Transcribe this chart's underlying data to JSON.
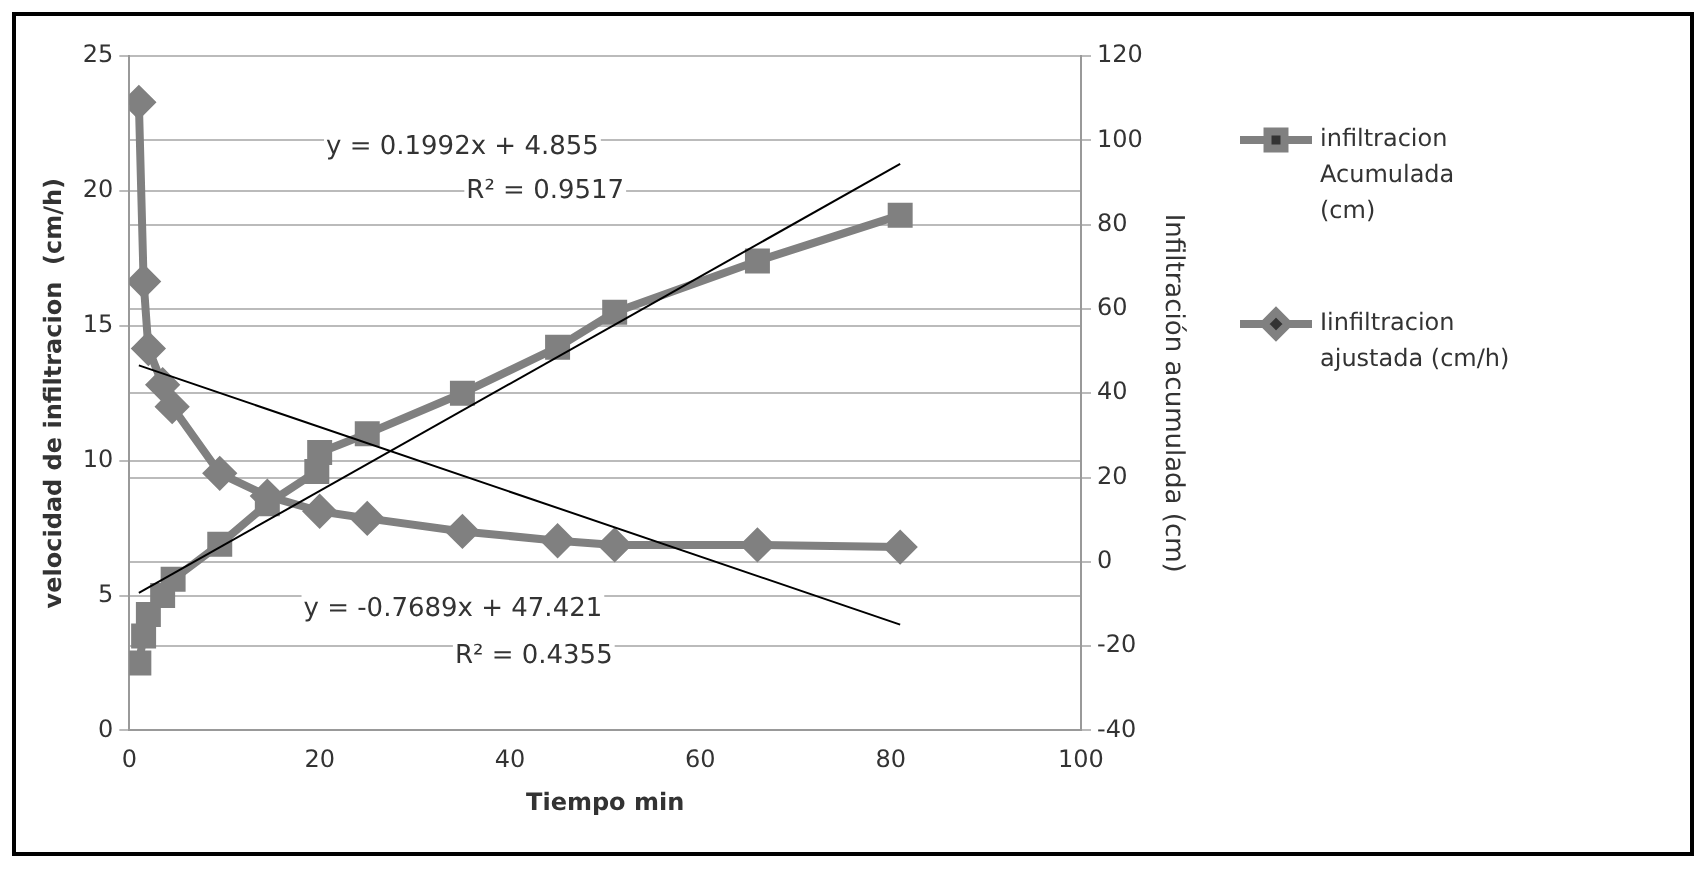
{
  "chart_data": {
    "type": "line",
    "xlabel": "Tiempo min",
    "ylabel": "velocidad de infiltracion  (cm/h)",
    "y2label": "Infiltración acumulada (cm)",
    "xlim": [
      0,
      100
    ],
    "xticks": [
      0,
      20,
      40,
      60,
      80,
      100
    ],
    "ylim": [
      0,
      25
    ],
    "yticks": [
      0,
      5,
      10,
      15,
      20,
      25
    ],
    "y2lim": [
      -40,
      120
    ],
    "y2ticks": [
      -40,
      -20,
      0,
      20,
      40,
      60,
      80,
      100,
      120
    ],
    "grid": "y",
    "legend": "right",
    "series": [
      {
        "name": "infiltracion Acumulada (cm)",
        "color": "#808080",
        "marker": "square",
        "x": [
          1,
          1.5,
          2,
          3.5,
          4.6,
          9.5,
          14.5,
          19.7,
          20,
          25,
          35,
          45,
          51,
          66,
          81
        ],
        "values": [
          2.5,
          3.5,
          4.3,
          5,
          5.6,
          6.9,
          8.4,
          9.6,
          10.3,
          11,
          12.5,
          14.2,
          15.5,
          17.4,
          19.1
        ]
      },
      {
        "name": "Iinfiltracion ajustada (cm/h)",
        "color": "#808080",
        "marker": "diamond",
        "axis": "y2",
        "x": [
          1,
          1.5,
          2,
          3.5,
          4.5,
          9.5,
          14.5,
          20,
          25,
          35,
          45,
          51,
          66,
          81
        ],
        "values": [
          109,
          66.5,
          50.6,
          42,
          36.8,
          21,
          15.6,
          12,
          10.3,
          7.2,
          5,
          4,
          4,
          3.5
        ]
      },
      {
        "type": "line",
        "color": "#000000",
        "marker": "none",
        "x": [
          1,
          81
        ],
        "values": [
          5.1,
          21
        ]
      },
      {
        "type": "line",
        "color": "#000000",
        "marker": "none",
        "axis": "y2",
        "x": [
          1,
          81
        ],
        "values": [
          46.6,
          -14.9
        ]
      }
    ],
    "annotations": [
      "y = 0.1992x + 4.855",
      "R² = 0.9517",
      "y = -0.7689x + 47.421",
      "R² = 0.4355"
    ]
  }
}
